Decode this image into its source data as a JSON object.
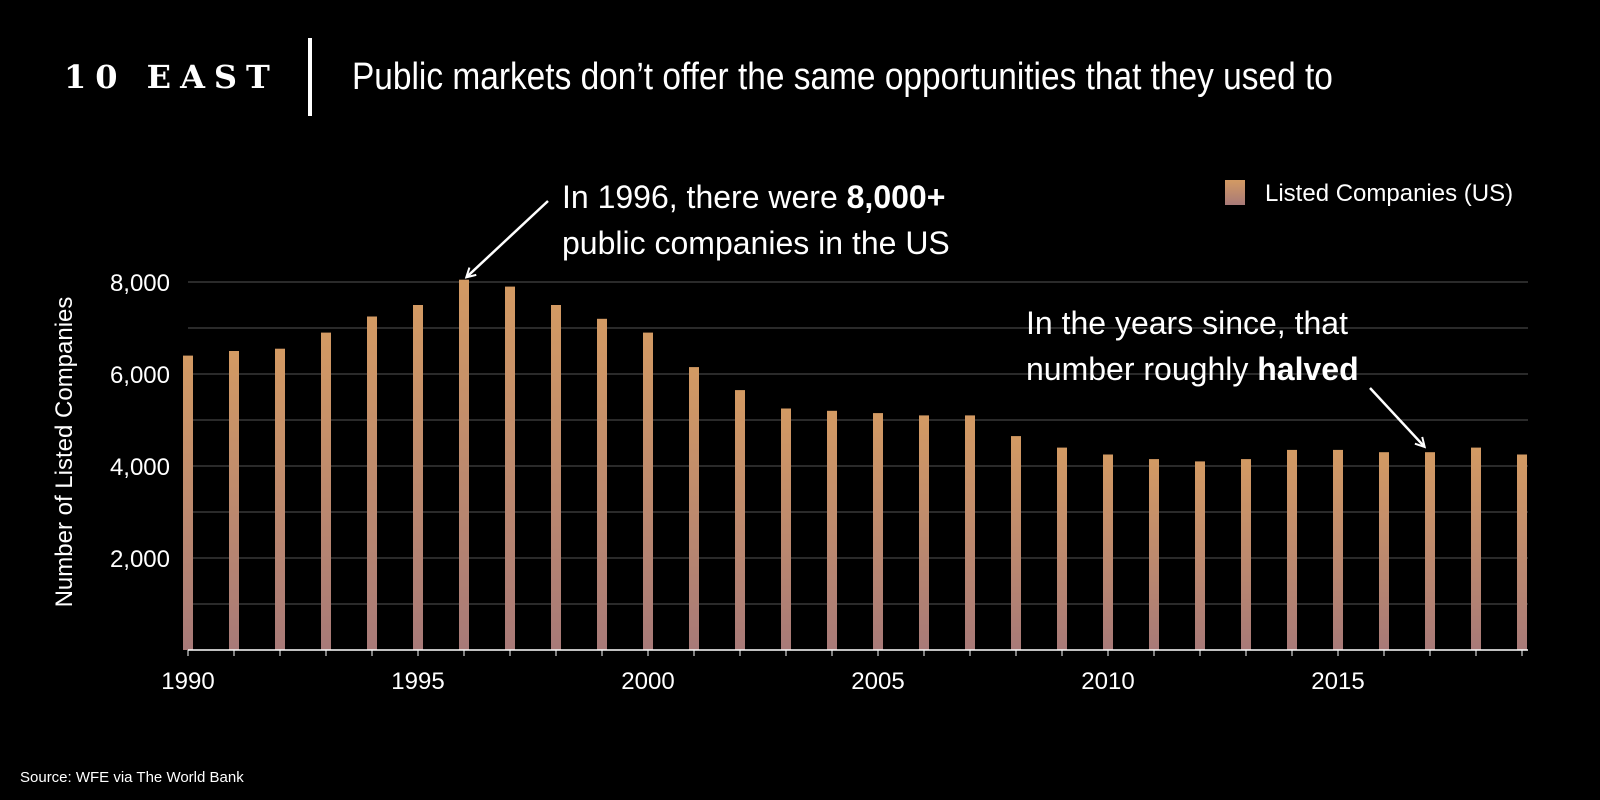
{
  "brand": {
    "logo_text": "10 EAST"
  },
  "header": {
    "title": "Public markets don’t offer the same opportunities that they used to"
  },
  "colors": {
    "background": "#000000",
    "bar_top": "#d39a63",
    "bar_bottom": "#a87a78",
    "grid": "#555555",
    "text": "#ffffff"
  },
  "chart_data": {
    "type": "bar",
    "title": "",
    "xlabel": "",
    "ylabel": "Number of Listed Companies",
    "ylim": [
      0,
      8000
    ],
    "x_ticks": [
      "1990",
      "1995",
      "2000",
      "2005",
      "2010",
      "2015"
    ],
    "y_ticks": [
      "2,000",
      "4,000",
      "6,000",
      "8,000"
    ],
    "grid": "horizontal",
    "legend": {
      "position": "top-right",
      "entries": [
        "Listed Companies (US)"
      ]
    },
    "categories": [
      "1990",
      "1991",
      "1992",
      "1993",
      "1994",
      "1995",
      "1996",
      "1997",
      "1998",
      "1999",
      "2000",
      "2001",
      "2002",
      "2003",
      "2004",
      "2005",
      "2006",
      "2007",
      "2008",
      "2009",
      "2010",
      "2011",
      "2012",
      "2013",
      "2014",
      "2015",
      "2016",
      "2017",
      "2018",
      "2019"
    ],
    "series": [
      {
        "name": "Listed Companies (US)",
        "values": [
          6400,
          6500,
          6550,
          6900,
          7250,
          7500,
          8050,
          7900,
          7500,
          7200,
          6900,
          6150,
          5650,
          5250,
          5200,
          5150,
          5100,
          5100,
          4650,
          4400,
          4250,
          4150,
          4100,
          4150,
          4350,
          4350,
          4300,
          4300,
          4400,
          4250
        ]
      }
    ],
    "annotations": [
      {
        "id": "peak",
        "target_year": "1996",
        "line1": "In 1996, there were ",
        "line1_bold": "8,000+",
        "line2": "public companies in the US"
      },
      {
        "id": "halved",
        "target_year": "2017",
        "line1": "In the years since, that",
        "line2": "number roughly ",
        "line2_bold": "halved"
      }
    ]
  },
  "footer": {
    "source": "Source: WFE via The World Bank"
  }
}
